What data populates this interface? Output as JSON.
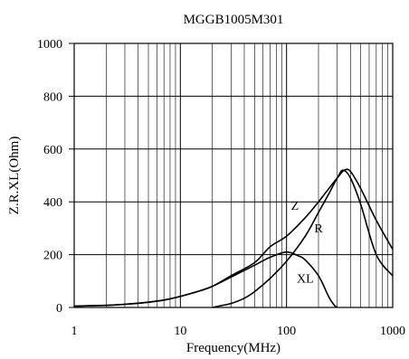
{
  "chart_data": {
    "type": "line",
    "title": "MGGB1005M301",
    "xlabel": "Frequency(MHz)",
    "ylabel": "Z.R.XL(Ohm)",
    "x_scale": "log",
    "xlim": [
      1,
      1000
    ],
    "ylim": [
      0,
      1000
    ],
    "x_ticks": [
      1,
      10,
      100,
      1000
    ],
    "x_tick_labels": [
      "1",
      "10",
      "100",
      "1000"
    ],
    "y_ticks": [
      0,
      200,
      400,
      600,
      800,
      1000
    ],
    "y_tick_labels": [
      "0",
      "200",
      "400",
      "600",
      "800",
      "1000"
    ],
    "grid": true,
    "series": [
      {
        "name": "Z",
        "label_at": [
          120,
          370
        ],
        "x": [
          1,
          2,
          3,
          5,
          7,
          10,
          15,
          20,
          30,
          50,
          70,
          100,
          150,
          200,
          250,
          300,
          350,
          400,
          500,
          700,
          1000
        ],
        "y": [
          5,
          8,
          12,
          20,
          28,
          42,
          62,
          80,
          120,
          170,
          230,
          270,
          340,
          400,
          450,
          490,
          520,
          515,
          450,
          330,
          220
        ]
      },
      {
        "name": "R",
        "label_at": [
          200,
          285
        ],
        "x": [
          20,
          25,
          30,
          40,
          50,
          70,
          100,
          150,
          200,
          250,
          300,
          340,
          400,
          500,
          700,
          1000
        ],
        "y": [
          0,
          8,
          15,
          35,
          60,
          110,
          175,
          270,
          360,
          430,
          490,
          520,
          490,
          390,
          200,
          120
        ]
      },
      {
        "name": "XL",
        "label_at": [
          150,
          95
        ],
        "x": [
          1,
          2,
          3,
          5,
          7,
          10,
          15,
          20,
          30,
          50,
          70,
          100,
          130,
          150,
          200,
          250,
          280,
          300
        ],
        "y": [
          5,
          8,
          12,
          20,
          28,
          42,
          62,
          80,
          115,
          160,
          190,
          210,
          195,
          180,
          120,
          40,
          10,
          0
        ]
      }
    ]
  }
}
